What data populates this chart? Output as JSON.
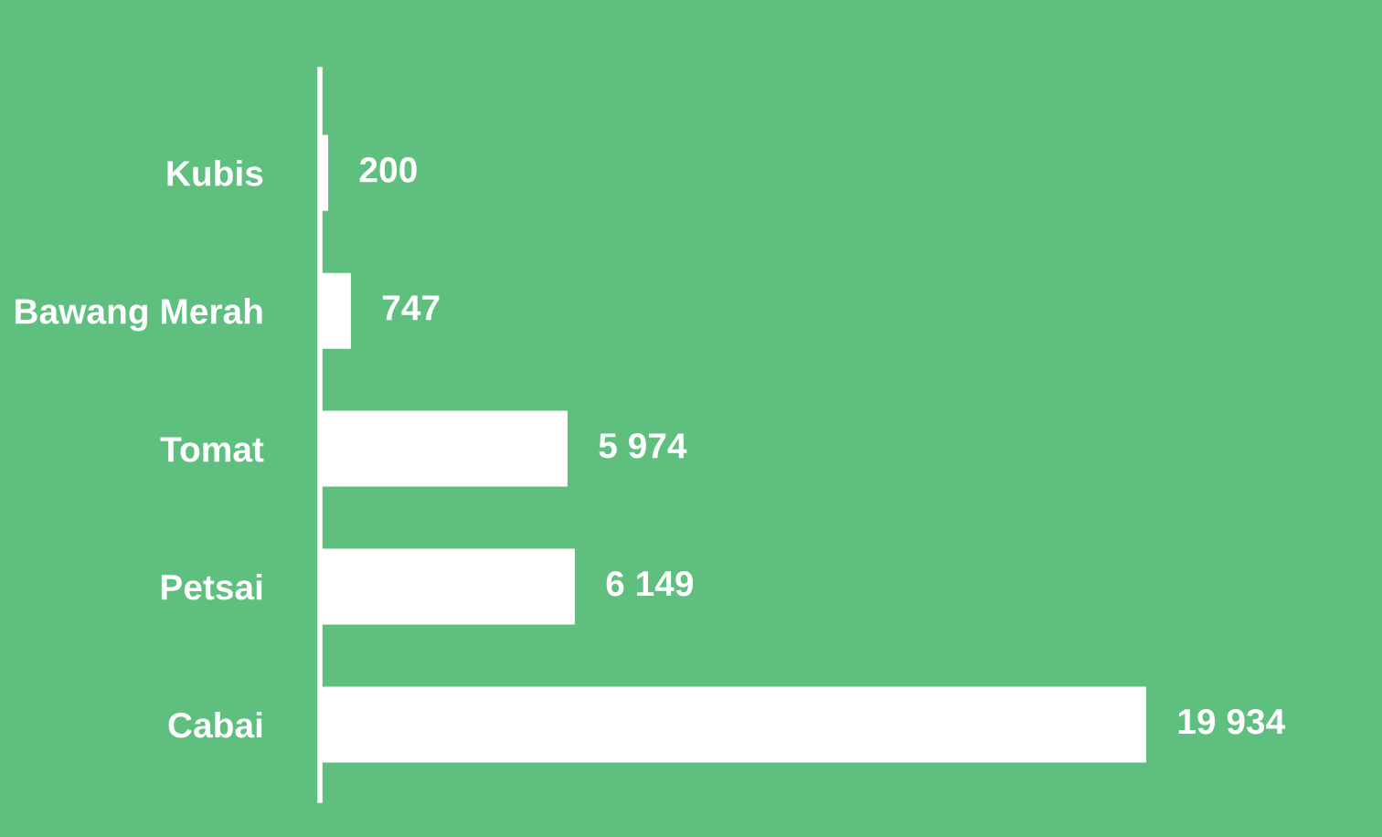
{
  "chart_data": {
    "type": "bar",
    "orientation": "horizontal",
    "categories": [
      "Kubis",
      "Bawang Merah",
      "Tomat",
      "Petsai",
      "Cabai"
    ],
    "values": [
      200,
      747,
      5974,
      6149,
      19934
    ],
    "value_labels": [
      "200",
      "747",
      "5 974",
      "6 149",
      "19 934"
    ],
    "color": "#ffffff",
    "grid": false,
    "legend": false
  }
}
